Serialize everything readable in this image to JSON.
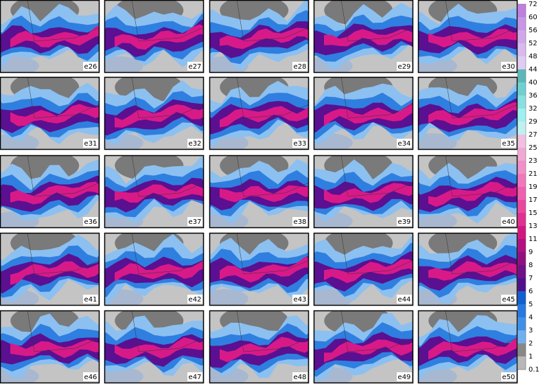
{
  "panels": [
    {
      "label": "e26"
    },
    {
      "label": "e27"
    },
    {
      "label": "e28"
    },
    {
      "label": "e29"
    },
    {
      "label": "e30"
    },
    {
      "label": "e31"
    },
    {
      "label": "e32"
    },
    {
      "label": "e33"
    },
    {
      "label": "e34"
    },
    {
      "label": "e35"
    },
    {
      "label": "e36"
    },
    {
      "label": "e37"
    },
    {
      "label": "e38"
    },
    {
      "label": "e39"
    },
    {
      "label": "e40"
    },
    {
      "label": "e41"
    },
    {
      "label": "e42"
    },
    {
      "label": "e43"
    },
    {
      "label": "e44"
    },
    {
      "label": "e45"
    },
    {
      "label": "e46"
    },
    {
      "label": "e47"
    },
    {
      "label": "e48"
    },
    {
      "label": "e49"
    },
    {
      "label": "e50"
    }
  ],
  "colorbar": {
    "labels": [
      "72",
      "60",
      "56",
      "52",
      "48",
      "44",
      "40",
      "36",
      "32",
      "29",
      "27",
      "25",
      "23",
      "21",
      "19",
      "17",
      "15",
      "13",
      "11",
      "9",
      "8",
      "7",
      "6",
      "5",
      "4",
      "3",
      "2",
      "1",
      "0.1"
    ]
  }
}
